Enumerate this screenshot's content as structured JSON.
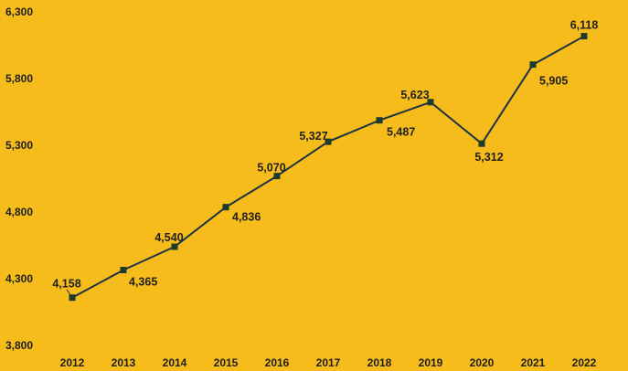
{
  "colors": {
    "background": "#F6BC1B",
    "line": "#1C3344",
    "marker": "#1E3A2A",
    "text": "#1f1f1f"
  },
  "chart_data": {
    "type": "line",
    "title": "",
    "xlabel": "",
    "ylabel": "",
    "categories": [
      "2012",
      "2013",
      "2014",
      "2015",
      "2016",
      "2017",
      "2018",
      "2019",
      "2020",
      "2021",
      "2022"
    ],
    "series": [
      {
        "values": [
          4158,
          4365,
          4540,
          4836,
          5070,
          5327,
          5487,
          5623,
          5312,
          5905,
          6118
        ],
        "labels": [
          "4,158",
          "4,365",
          "4,540",
          "4,836",
          "5,070",
          "5,327",
          "5,487",
          "5,623",
          "5,312",
          "5,905",
          "6,118"
        ]
      }
    ],
    "ylim": [
      3800,
      6300
    ],
    "yticks": [
      "3,800",
      "4,300",
      "4,800",
      "5,300",
      "5,800",
      "6,300"
    ],
    "grid": false,
    "legend": "none"
  }
}
